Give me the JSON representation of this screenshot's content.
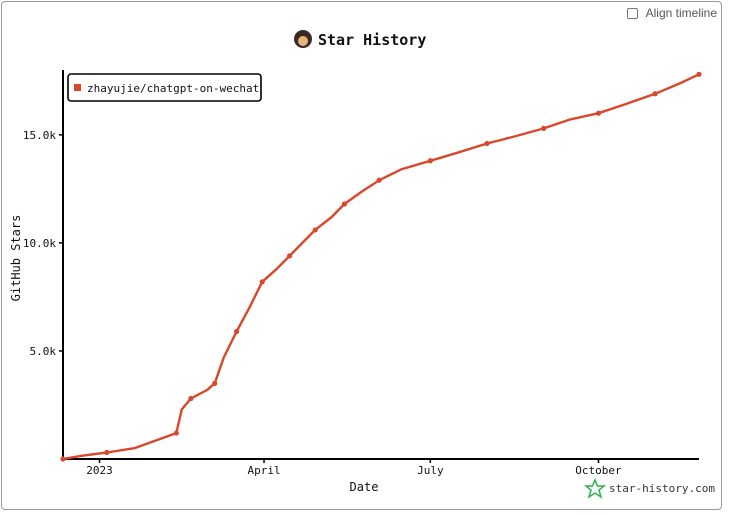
{
  "header": {
    "title": "Star History",
    "align_label": "Align timeline",
    "watermark": "star-history.com"
  },
  "chart_data": {
    "type": "line",
    "title": "Star History",
    "xlabel": "Date",
    "ylabel": "GitHub Stars",
    "x_ticks": [
      "2023",
      "April",
      "July",
      "October"
    ],
    "y_ticks": [
      "5.0k",
      "10.0k",
      "15.0k"
    ],
    "ylim": [
      0,
      18000
    ],
    "legend_position": "top-left",
    "series": [
      {
        "name": "zhayujie/chatgpt-on-wechat",
        "color": "#d9482b",
        "points": [
          [
            "2022-12-12",
            0
          ],
          [
            "2022-12-22",
            150
          ],
          [
            "2023-01-05",
            300
          ],
          [
            "2023-01-20",
            500
          ],
          [
            "2023-02-12",
            1200
          ],
          [
            "2023-02-15",
            2300
          ],
          [
            "2023-02-20",
            2800
          ],
          [
            "2023-03-01",
            3200
          ],
          [
            "2023-03-05",
            3500
          ],
          [
            "2023-03-10",
            4700
          ],
          [
            "2023-03-17",
            5900
          ],
          [
            "2023-03-24",
            7000
          ],
          [
            "2023-03-31",
            8200
          ],
          [
            "2023-04-08",
            8800
          ],
          [
            "2023-04-15",
            9400
          ],
          [
            "2023-04-22",
            10000
          ],
          [
            "2023-04-29",
            10600
          ],
          [
            "2023-05-08",
            11200
          ],
          [
            "2023-05-15",
            11800
          ],
          [
            "2023-05-25",
            12400
          ],
          [
            "2023-06-03",
            12900
          ],
          [
            "2023-06-15",
            13400
          ],
          [
            "2023-07-01",
            13800
          ],
          [
            "2023-07-15",
            14150
          ],
          [
            "2023-08-01",
            14600
          ],
          [
            "2023-08-15",
            14900
          ],
          [
            "2023-09-01",
            15300
          ],
          [
            "2023-09-15",
            15700
          ],
          [
            "2023-10-01",
            16000
          ],
          [
            "2023-10-15",
            16400
          ],
          [
            "2023-11-01",
            16900
          ],
          [
            "2023-11-15",
            17400
          ],
          [
            "2023-11-25",
            17800
          ]
        ]
      }
    ]
  }
}
